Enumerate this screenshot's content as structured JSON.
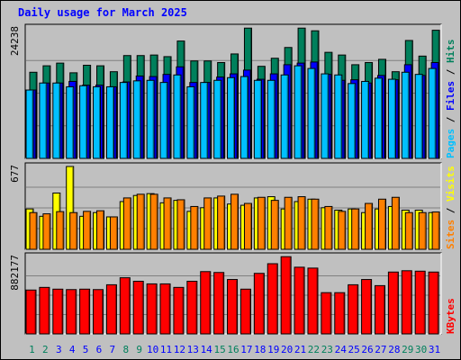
{
  "title": "Daily usage for March 2025",
  "colors": {
    "hits": "#00805c",
    "files": "#0000ff",
    "pages": "#00c0ff",
    "visits": "#ff8000",
    "sites": "#ffff00",
    "kbytes": "#ff0000",
    "weekday_label": "#0000ff",
    "weekend_label": "#00805c"
  },
  "chart_data": [
    {
      "type": "bar",
      "name": "hits-files-pages",
      "ymax_label": "24238",
      "ylim": [
        0,
        24238
      ],
      "right_labels": [
        "Pages",
        "Files",
        "Hits"
      ],
      "categories": [
        "1",
        "2",
        "3",
        "4",
        "5",
        "6",
        "7",
        "8",
        "9",
        "10",
        "11",
        "12",
        "13",
        "14",
        "15",
        "16",
        "17",
        "18",
        "19",
        "20",
        "21",
        "22",
        "23",
        "24",
        "25",
        "26",
        "27",
        "28",
        "29",
        "30",
        "31"
      ],
      "series": [
        {
          "name": "Hits",
          "values": [
            16000,
            17200,
            17700,
            15900,
            17300,
            17200,
            16100,
            19100,
            19100,
            19200,
            18900,
            21800,
            18100,
            18100,
            17800,
            19400,
            24200,
            17100,
            18600,
            20600,
            24200,
            23700,
            19700,
            19200,
            17400,
            17800,
            18400,
            16100,
            21900,
            19000,
            23800
          ]
        },
        {
          "name": "Files",
          "values": [
            12700,
            14000,
            14000,
            14300,
            13600,
            13600,
            13300,
            14200,
            15300,
            15200,
            15600,
            17000,
            14100,
            14100,
            15100,
            15700,
            16400,
            14700,
            15700,
            17400,
            17700,
            17900,
            15600,
            14500,
            14600,
            14000,
            15400,
            14600,
            17400,
            15400,
            17800
          ]
        },
        {
          "name": "Pages",
          "values": [
            12700,
            14000,
            14000,
            13300,
            13500,
            13300,
            13300,
            14100,
            14400,
            14500,
            14100,
            15500,
            13300,
            14100,
            14500,
            15000,
            15200,
            14500,
            14500,
            15500,
            17200,
            16700,
            15700,
            15500,
            13900,
            14300,
            14900,
            14700,
            16000,
            15600,
            16700
          ]
        }
      ]
    },
    {
      "type": "bar",
      "name": "visits-sites",
      "ymax_label": "677",
      "ylim": [
        0,
        677
      ],
      "right_labels": [
        "Sites",
        "Visits"
      ],
      "categories": [
        "1",
        "2",
        "3",
        "4",
        "5",
        "6",
        "7",
        "8",
        "9",
        "10",
        "11",
        "12",
        "13",
        "14",
        "15",
        "16",
        "17",
        "18",
        "19",
        "20",
        "21",
        "22",
        "23",
        "24",
        "25",
        "26",
        "27",
        "28",
        "29",
        "30",
        "31"
      ],
      "series": [
        {
          "name": "Visits",
          "values": [
            300,
            290,
            308,
            300,
            310,
            315,
            265,
            420,
            450,
            450,
            420,
            405,
            350,
            420,
            435,
            450,
            375,
            425,
            400,
            425,
            430,
            410,
            350,
            310,
            330,
            375,
            410,
            425,
            300,
            300,
            305
          ]
        },
        {
          "name": "Sites",
          "values": [
            330,
            270,
            460,
            677,
            270,
            300,
            265,
            390,
            440,
            455,
            380,
            400,
            310,
            340,
            420,
            370,
            360,
            420,
            430,
            330,
            390,
            410,
            340,
            320,
            330,
            300,
            330,
            350,
            320,
            320,
            300
          ]
        }
      ]
    },
    {
      "type": "bar",
      "name": "kbytes",
      "ymax_label": "882177",
      "ylim": [
        0,
        882177
      ],
      "right_labels": [
        "KBytes"
      ],
      "categories": [
        "1",
        "2",
        "3",
        "4",
        "5",
        "6",
        "7",
        "8",
        "9",
        "10",
        "11",
        "12",
        "13",
        "14",
        "15",
        "16",
        "17",
        "18",
        "19",
        "20",
        "21",
        "22",
        "23",
        "24",
        "25",
        "26",
        "27",
        "28",
        "29",
        "30",
        "31"
      ],
      "series": [
        {
          "name": "KBytes",
          "values": [
            500000,
            530000,
            510000,
            505000,
            510000,
            505000,
            560000,
            640000,
            600000,
            570000,
            570000,
            530000,
            600000,
            710000,
            700000,
            620000,
            510000,
            690000,
            800000,
            880000,
            760000,
            750000,
            470000,
            470000,
            560000,
            620000,
            550000,
            705000,
            720000,
            715000,
            705000
          ]
        }
      ]
    }
  ],
  "x_labels": {
    "days": [
      "1",
      "2",
      "3",
      "4",
      "5",
      "6",
      "7",
      "8",
      "9",
      "10",
      "11",
      "12",
      "13",
      "14",
      "15",
      "16",
      "17",
      "18",
      "19",
      "20",
      "21",
      "22",
      "23",
      "24",
      "25",
      "26",
      "27",
      "28",
      "29",
      "30",
      "31"
    ],
    "weekend_days": [
      "1",
      "2",
      "8",
      "9",
      "15",
      "16",
      "22",
      "23",
      "29",
      "30"
    ]
  }
}
